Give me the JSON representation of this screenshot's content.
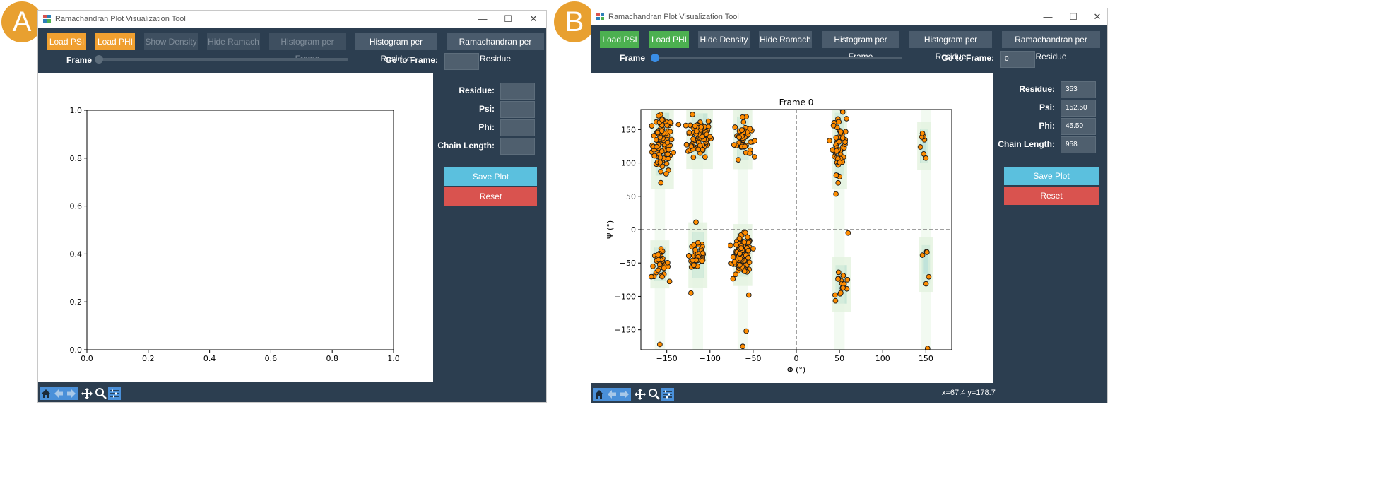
{
  "panel_a": {
    "badge": "A",
    "window_title": "Ramachandran Plot Visualization Tool",
    "buttons": {
      "load_psi": "Load PSI",
      "load_phi": "Load PHI",
      "show_density": "Show Density",
      "hide_ramach": "Hide Ramach",
      "histogram_frame": "Histogram per Frame",
      "histogram_residue": "Histogram per Residue",
      "ramachandran_residue": "Ramachandran per Residue"
    },
    "frame_label": "Frame",
    "goto_label": "Go to Frame:",
    "goto_value": "",
    "residue_label": "Residue:",
    "psi_label": "Psi:",
    "phi_label": "Phi:",
    "chain_label": "Chain Length:",
    "residue_value": "",
    "psi_value": "",
    "phi_value": "",
    "chain_value": "",
    "save_label": "Save Plot",
    "reset_label": "Reset",
    "frame_position": 0.0,
    "chart_data": {
      "type": "scatter",
      "title": "",
      "xlabel": "",
      "ylabel": "",
      "xlim": [
        0.0,
        1.0
      ],
      "ylim": [
        0.0,
        1.0
      ],
      "xticks": [
        "0.0",
        "0.2",
        "0.4",
        "0.6",
        "0.8",
        "1.0"
      ],
      "yticks": [
        "0.0",
        "0.2",
        "0.4",
        "0.6",
        "0.8",
        "1.0"
      ],
      "points": []
    }
  },
  "panel_b": {
    "badge": "B",
    "window_title": "Ramachandran Plot Visualization Tool",
    "buttons": {
      "load_psi": "Load PSI",
      "load_phi": "Load PHI",
      "hide_density": "Hide Density",
      "hide_ramach": "Hide Ramach",
      "histogram_frame": "Histogram per Frame",
      "histogram_residue": "Histogram per Residue",
      "ramachandran_residue": "Ramachandran per Residue"
    },
    "frame_label": "Frame",
    "goto_label": "Go to Frame:",
    "goto_value": "0",
    "residue_label": "Residue:",
    "psi_label": "Psi:",
    "phi_label": "Phi:",
    "chain_label": "Chain Length:",
    "residue_value": "353",
    "psi_value": "152.50",
    "phi_value": "45.50",
    "chain_value": "958",
    "save_label": "Save Plot",
    "reset_label": "Reset",
    "status": "x=67.4 y=178.7",
    "frame_position": 0.0,
    "chart_data": {
      "type": "scatter",
      "title": "Frame 0",
      "xlabel": "Φ (°)",
      "ylabel": "Ψ (°)",
      "xlim": [
        -180,
        180
      ],
      "ylim": [
        -180,
        180
      ],
      "xticks": [
        "-150",
        "-100",
        "-50",
        "0",
        "50",
        "100",
        "150"
      ],
      "yticks": [
        "-150",
        "-100",
        "-50",
        "0",
        "50",
        "100",
        "150"
      ],
      "reference_lines": {
        "x": 0,
        "y": 0
      },
      "point_color": "#ff8c00",
      "density_colors": [
        "#e3f3df",
        "#b9e0d2",
        "#8ccbd6"
      ],
      "clusters": [
        {
          "phi": -155,
          "psi": 128,
          "sphi": 6,
          "spsi": 22,
          "n": 95
        },
        {
          "phi": -112,
          "psi": 140,
          "sphi": 7,
          "spsi": 15,
          "n": 90
        },
        {
          "phi": -62,
          "psi": 137,
          "sphi": 5,
          "spsi": 14,
          "n": 50
        },
        {
          "phi": 50,
          "psi": 128,
          "sphi": 4,
          "spsi": 22,
          "n": 55
        },
        {
          "phi": 148,
          "psi": 125,
          "sphi": 3,
          "spsi": 10,
          "n": 7
        },
        {
          "phi": -158,
          "psi": -52,
          "sphi": 5,
          "spsi": 10,
          "n": 35
        },
        {
          "phi": -114,
          "psi": -38,
          "sphi": 5,
          "spsi": 15,
          "n": 40
        },
        {
          "phi": -62,
          "psi": -38,
          "sphi": 5,
          "spsi": 14,
          "n": 130
        },
        {
          "phi": 52,
          "psi": -82,
          "sphi": 5,
          "spsi": 12,
          "n": 15
        },
        {
          "phi": 150,
          "psi": -52,
          "sphi": 3,
          "spsi": 12,
          "n": 5
        }
      ],
      "outliers": [
        {
          "phi": -158,
          "psi": -172
        },
        {
          "phi": -62,
          "psi": -175
        },
        {
          "phi": -58,
          "psi": -152
        },
        {
          "phi": -122,
          "psi": -95
        },
        {
          "phi": -55,
          "psi": -98
        },
        {
          "phi": 60,
          "psi": -5
        },
        {
          "phi": 152,
          "psi": -178
        }
      ]
    }
  }
}
